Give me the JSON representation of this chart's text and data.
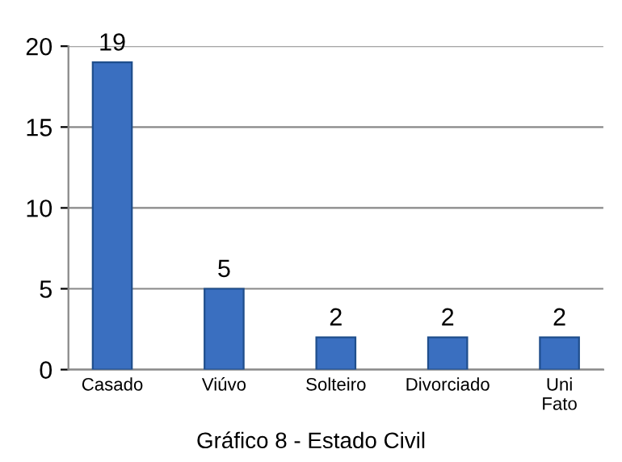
{
  "chart_data": {
    "type": "bar",
    "title": "Gráfico 8 - Estado Civil",
    "categories": [
      "Casado",
      "Viúvo",
      "Solteiro",
      "Divorciado",
      "Uni\nFato"
    ],
    "values": [
      19,
      5,
      2,
      2,
      2
    ],
    "color": "#3a6fc0",
    "ylim": [
      0,
      20
    ],
    "yticks": [
      0,
      5,
      10,
      15,
      20
    ],
    "grid": "y",
    "data_labels": true
  }
}
